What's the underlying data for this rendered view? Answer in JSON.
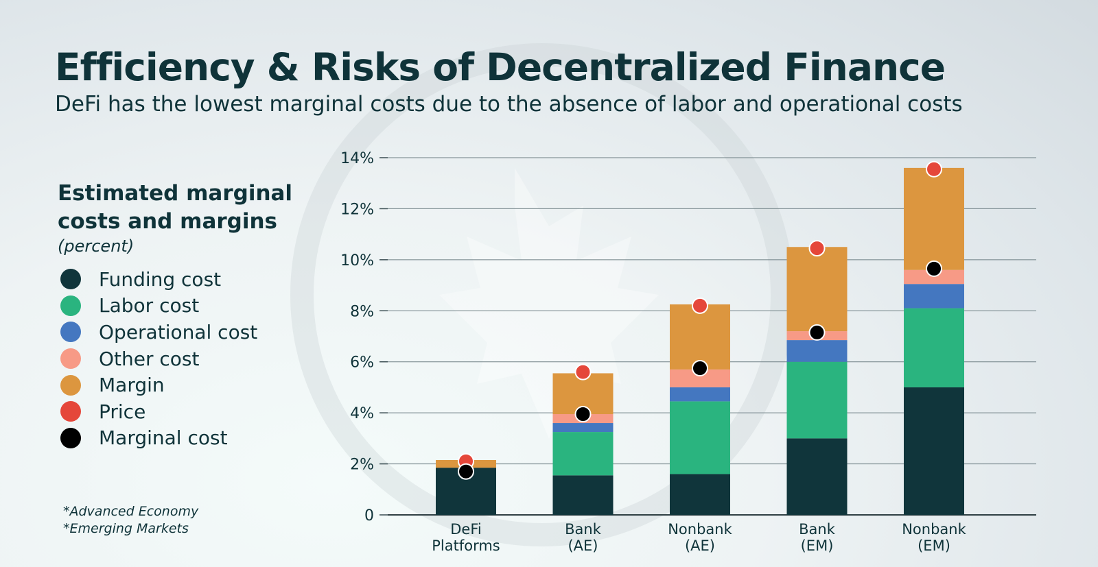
{
  "title": "Efficiency & Risks of Decentralized Finance",
  "subtitle": "DeFi has the lowest marginal costs due to the absence of labor and operational costs",
  "legend_panel": {
    "title_line1": "Estimated marginal",
    "title_line2": "costs and margins",
    "unit": "(percent)",
    "items": [
      {
        "label": "Funding cost",
        "color": "#10353b"
      },
      {
        "label": "Labor cost",
        "color": "#2ab47f"
      },
      {
        "label": "Operational cost",
        "color": "#4477c0"
      },
      {
        "label": "Other cost",
        "color": "#f79a86"
      },
      {
        "label": "Margin",
        "color": "#dc963f"
      },
      {
        "label": "Price",
        "color": "#e5473a"
      },
      {
        "label": "Marginal cost",
        "color": "#000000"
      }
    ]
  },
  "notes": [
    "*Advanced Economy",
    "*Emerging Markets"
  ],
  "chart_data": {
    "type": "bar",
    "stacked": true,
    "categories": [
      [
        "DeFi",
        "Platforms"
      ],
      [
        "Bank",
        "(AE)"
      ],
      [
        "Nonbank",
        "(AE)"
      ],
      [
        "Bank",
        "(EM)"
      ],
      [
        "Nonbank",
        "(EM)"
      ]
    ],
    "series": [
      {
        "name": "Funding cost",
        "color": "#10353b",
        "values": [
          1.85,
          1.55,
          1.6,
          3.0,
          5.0
        ]
      },
      {
        "name": "Labor cost",
        "color": "#2ab47f",
        "values": [
          0,
          1.7,
          2.85,
          3.0,
          3.1
        ]
      },
      {
        "name": "Operational cost",
        "color": "#4477c0",
        "values": [
          0,
          0.35,
          0.55,
          0.85,
          0.95
        ]
      },
      {
        "name": "Other cost",
        "color": "#f79a86",
        "values": [
          0,
          0.35,
          0.7,
          0.35,
          0.55
        ]
      },
      {
        "name": "Margin",
        "color": "#dc963f",
        "values": [
          0.3,
          1.6,
          2.55,
          3.3,
          4.0
        ]
      }
    ],
    "markers": [
      {
        "name": "Price",
        "color": "#e5473a",
        "values": [
          2.1,
          5.6,
          8.2,
          10.45,
          13.55
        ]
      },
      {
        "name": "Marginal cost",
        "color": "#000000",
        "values": [
          1.7,
          3.95,
          5.75,
          7.15,
          9.65
        ]
      }
    ],
    "ylim": [
      0,
      14
    ],
    "yticks": [
      0,
      2,
      4,
      6,
      8,
      10,
      12,
      14
    ],
    "ytick_labels": [
      "0",
      "2%",
      "4%",
      "6%",
      "8%",
      "10%",
      "12%",
      "14%"
    ],
    "grid": true,
    "xlabel": "",
    "ylabel": ""
  }
}
